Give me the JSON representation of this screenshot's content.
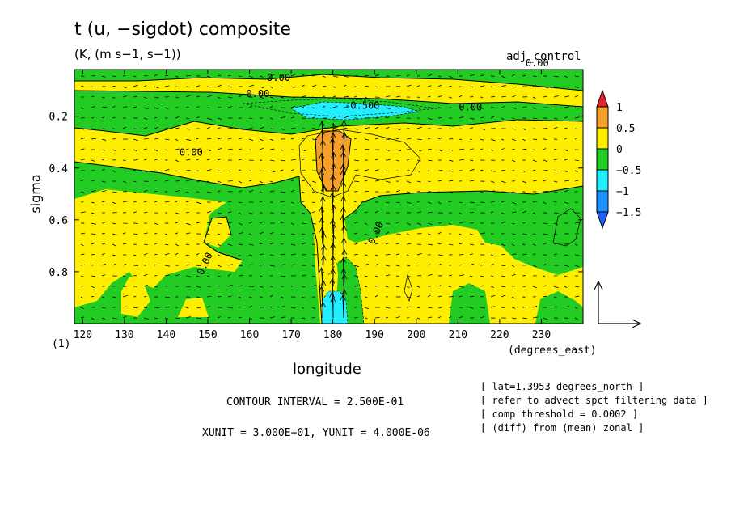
{
  "title": "t (u, −sigdot) composite",
  "units": "(K, (m s−1, s−1))",
  "run_name": "adj_control",
  "x_unit_label": "(degrees_east)",
  "subplot_label": "(1)",
  "contour_interval": "CONTOUR INTERVAL = 2.500E-01",
  "vector_units": "XUNIT = 3.000E+01, YUNIT = 4.000E-06",
  "notes": [
    "[ lat=1.3953 degrees_north ]",
    "[ refer to advect spct filtering data ]",
    "[ comp threshold = 0.0002 ]",
    "[ (diff) from (mean) zonal ]"
  ],
  "chart_data": {
    "type": "heatmap",
    "xlabel": "longitude",
    "ylabel": "sigma",
    "xlim": [
      118,
      240
    ],
    "ylim": [
      1.0,
      0.02
    ],
    "x_ticks": [
      120,
      130,
      140,
      150,
      160,
      170,
      180,
      190,
      200,
      210,
      220,
      230
    ],
    "y_ticks": [
      0.2,
      0.4,
      0.6,
      0.8
    ],
    "colorbar": {
      "levels": [
        "1",
        "0.5",
        "0",
        "−0.5",
        "−1",
        "−1.5"
      ],
      "colors": [
        "#e8222a",
        "#f5a02a",
        "#ffee00",
        "#22cc22",
        "#22eeff",
        "#1e90ff",
        "#1f5fff"
      ]
    },
    "contour_labels": [
      {
        "text": "0.00",
        "x": 167,
        "y": 0.064
      },
      {
        "text": "0.00",
        "x": 229,
        "y": 0.008
      },
      {
        "text": "0.00",
        "x": 162,
        "y": 0.126
      },
      {
        "text": "-0.500",
        "x": 187,
        "y": 0.172
      },
      {
        "text": "0.00",
        "x": 213,
        "y": 0.178
      },
      {
        "text": "0.00",
        "x": 146,
        "y": 0.352
      },
      {
        "text": "0.00",
        "x": 191,
        "y": 0.656
      },
      {
        "text": "0.00",
        "x": 150,
        "y": 0.774
      }
    ],
    "anomaly_regions": [
      {
        "level": "0.5 to 1",
        "lon_range": [
          175,
          185
        ],
        "sigma_range": [
          0.27,
          0.49
        ]
      },
      {
        "level": "-0.5 to -1",
        "lon_range": [
          178,
          194
        ],
        "sigma_range": [
          0.14,
          0.2
        ]
      },
      {
        "level": "-0.5 to -1",
        "lon_range": [
          176,
          182
        ],
        "sigma_range": [
          0.88,
          1.0
        ]
      }
    ]
  }
}
